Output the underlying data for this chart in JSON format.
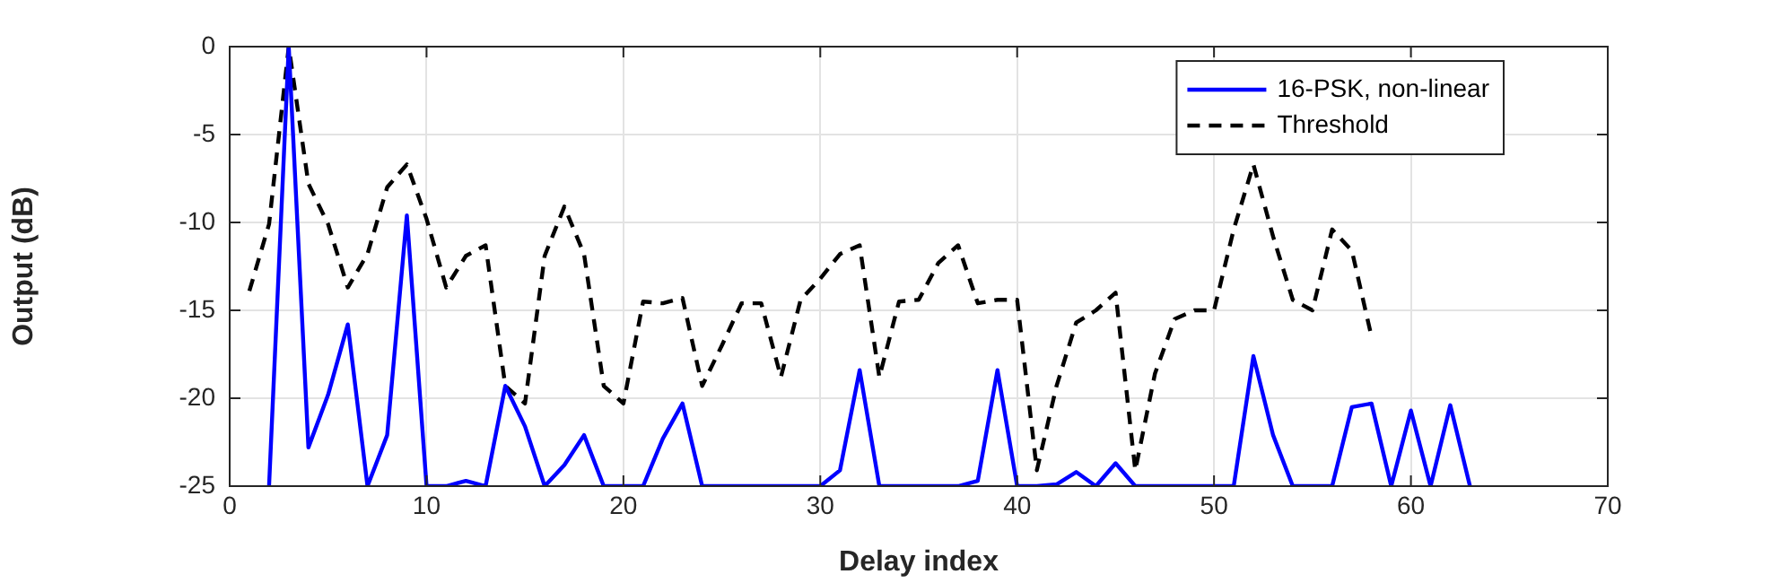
{
  "chart_data": {
    "type": "line",
    "xlabel": "Delay index",
    "ylabel": "Output (dB)",
    "x": [
      1,
      2,
      3,
      4,
      5,
      6,
      7,
      8,
      9,
      10,
      11,
      12,
      13,
      14,
      15,
      16,
      17,
      18,
      19,
      20,
      21,
      22,
      23,
      24,
      25,
      26,
      27,
      28,
      29,
      30,
      31,
      32,
      33,
      34,
      35,
      36,
      37,
      38,
      39,
      40,
      41,
      42,
      43,
      44,
      45,
      46,
      47,
      48,
      49,
      50,
      51,
      52,
      53,
      54,
      55,
      56,
      57,
      58,
      59,
      60,
      61,
      62,
      63
    ],
    "xlim": [
      0,
      70
    ],
    "xticks": [
      0,
      10,
      20,
      30,
      40,
      50,
      60,
      70
    ],
    "ylim": [
      -25,
      0
    ],
    "yticks": [
      -25,
      -20,
      -15,
      -10,
      -5,
      0
    ],
    "grid": true,
    "legend": "top right",
    "marker": "none",
    "series": [
      {
        "name": "16-PSK, non-linear",
        "color": "#0000ff",
        "line_style": "solid",
        "values": [
          null,
          -25,
          0,
          -22.8,
          -19.8,
          -15.8,
          -25,
          -22.1,
          -9.6,
          -25,
          -25,
          -24.7,
          -25,
          -19.3,
          -21.6,
          -25,
          -23.8,
          -22.1,
          -25,
          -25,
          -25,
          -22.3,
          -20.3,
          -25,
          -25,
          -25,
          -25,
          -25,
          -25,
          -25,
          -24.1,
          -18.4,
          -25,
          -25,
          -25,
          -25,
          -25,
          -24.7,
          -18.4,
          -25,
          -25,
          -24.9,
          -24.2,
          -25,
          -23.7,
          -25,
          -25,
          -25,
          -25,
          -25,
          -25,
          -17.6,
          -22.1,
          -25,
          -25,
          -25,
          -20.5,
          -20.3,
          -25,
          -20.7,
          -25,
          -20.4,
          -25
        ]
      },
      {
        "name": "Threshold",
        "color": "#000000",
        "line_style": "dashed",
        "values": [
          -13.9,
          -10.1,
          0,
          -7.8,
          -10.1,
          -13.7,
          -11.8,
          -8,
          -6.7,
          -9.8,
          -13.7,
          -11.9,
          -11.3,
          -19.3,
          -20.3,
          -11.9,
          -9.1,
          -11.8,
          -19.3,
          -20.3,
          -14.5,
          -14.6,
          -14.3,
          -19.3,
          -17,
          -14.6,
          -14.6,
          -18.8,
          -14.4,
          -13.2,
          -11.8,
          -11.3,
          -18.8,
          -14.5,
          -14.4,
          -12.3,
          -11.3,
          -14.6,
          -14.4,
          -14.4,
          -24.1,
          -19.3,
          -15.7,
          -15,
          -14,
          -24.1,
          -18.6,
          -15.5,
          -15,
          -15,
          -10.4,
          -6.7,
          -10.8,
          -14.4,
          -15,
          -10.4,
          -11.6,
          -16.5,
          null,
          null,
          null,
          null,
          null
        ]
      }
    ]
  }
}
